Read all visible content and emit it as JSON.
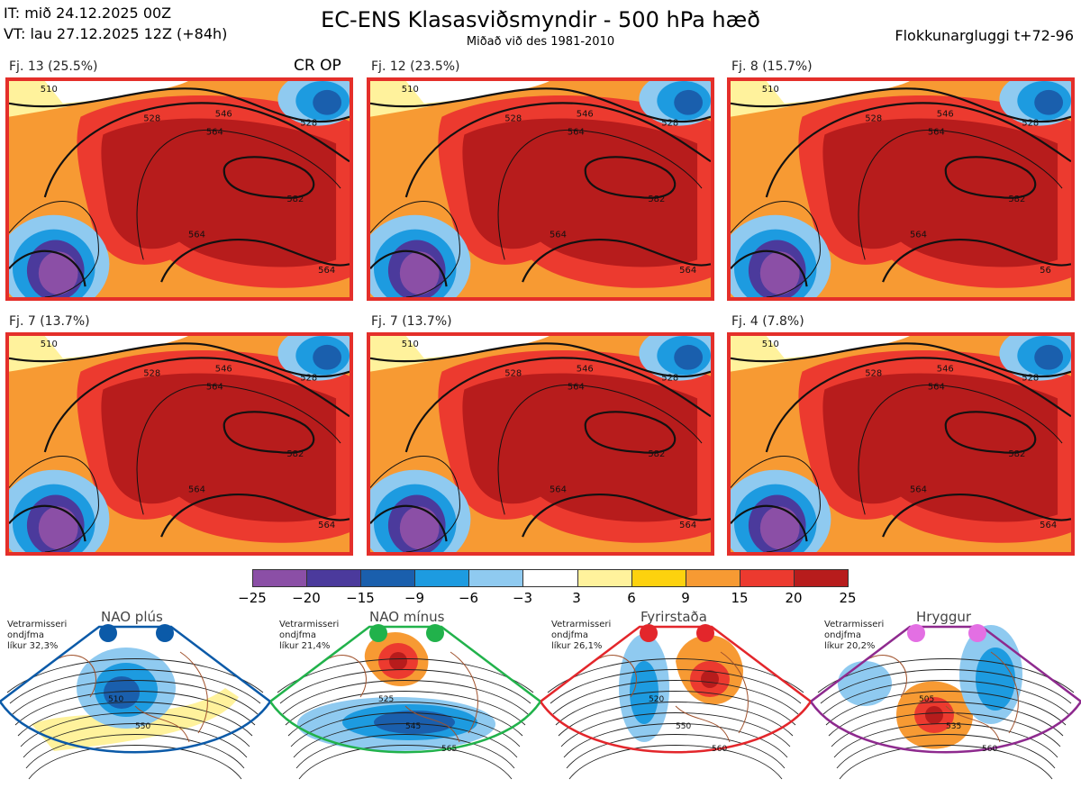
{
  "header": {
    "it_line": "IT: mið 24.12.2025 00Z",
    "vt_line": "VT: lau 27.12.2025 12Z  (+84h)",
    "title": "EC-ENS Klasasviðsmyndir - 500 hPa hæð",
    "subtitle": "Miðað við des 1981-2010",
    "window": "Flokkunargluggi t+72-96",
    "crop": "CR OP"
  },
  "panels": [
    {
      "label": "Fj. 13 (25.5%)",
      "contours": [
        "510",
        "528",
        "546",
        "564",
        "582",
        "564",
        "564",
        "528"
      ]
    },
    {
      "label": "Fj. 12 (23.5%)",
      "contours": [
        "510",
        "528",
        "546",
        "564",
        "582",
        "564",
        "564",
        "528"
      ]
    },
    {
      "label": "Fj. 8 (15.7%)",
      "contours": [
        "510",
        "528",
        "546",
        "564",
        "582",
        "564",
        "56",
        "528"
      ]
    },
    {
      "label": "Fj. 7 (13.7%)",
      "contours": [
        "510",
        "528",
        "546",
        "564",
        "582",
        "564",
        "564",
        "528"
      ]
    },
    {
      "label": "Fj. 7 (13.7%)",
      "contours": [
        "510",
        "528",
        "546",
        "564",
        "582",
        "564",
        "564",
        "528"
      ]
    },
    {
      "label": "Fj. 4 (7.8%)",
      "contours": [
        "510",
        "528",
        "546",
        "564",
        "582",
        "564",
        "564",
        "528"
      ]
    }
  ],
  "colorbar": {
    "colors": [
      "#8b4fa6",
      "#4b3a9c",
      "#1a5fad",
      "#1d9be0",
      "#8fcaf0",
      "#ffffff",
      "#fff29c",
      "#fdd20e",
      "#f79a33",
      "#ec3a2f",
      "#b71c1c"
    ],
    "ticks": [
      "−25",
      "−20",
      "−15",
      "−9",
      "−6",
      "−3",
      "3",
      "6",
      "9",
      "15",
      "20",
      "25"
    ]
  },
  "regimes": [
    {
      "title": "NAO plús",
      "note": [
        "Vetrarmisseri",
        "ondjfma",
        "líkur 32,3%"
      ],
      "dot_color": "#0b5aa8",
      "border_color": "#0b5aa8",
      "labels": [
        "510",
        "550"
      ]
    },
    {
      "title": "NAO mínus",
      "note": [
        "Vetrarmisseri",
        "ondjfma",
        "líkur 21,4%"
      ],
      "dot_color": "#21b24b",
      "border_color": "#21b24b",
      "labels": [
        "525",
        "545",
        "565"
      ]
    },
    {
      "title": "Fyrirstaða",
      "note": [
        "Vetrarmisseri",
        "ondjfma",
        "líkur 26,1%"
      ],
      "dot_color": "#e3262b",
      "border_color": "#e3262b",
      "labels": [
        "520",
        "550",
        "560"
      ]
    },
    {
      "title": "Hryggur",
      "note": [
        "Vetrarmisseri",
        "ondjfma",
        "líkur 20,2%"
      ],
      "dot_color": "#e36fe3",
      "border_color": "#8e2a8e",
      "labels": [
        "505",
        "535",
        "560"
      ]
    }
  ]
}
